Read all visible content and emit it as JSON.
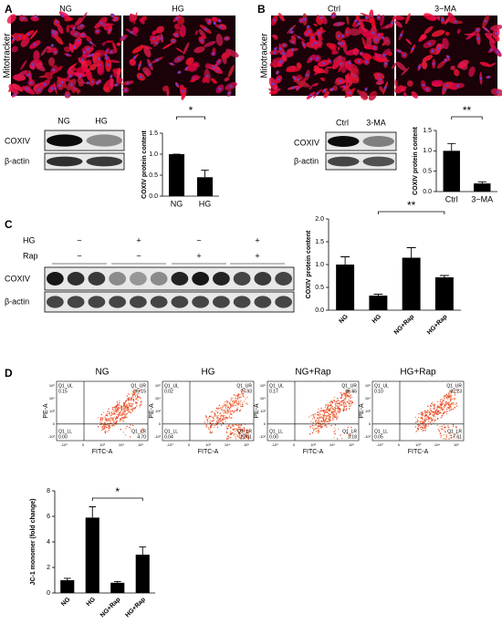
{
  "figure": {
    "panel_labels": [
      "A",
      "B",
      "C",
      "D"
    ],
    "a": {
      "image_labels": [
        "NG",
        "HG"
      ],
      "stain": "Mitotracker",
      "blot_lanes": [
        "NG",
        "HG"
      ],
      "blot_rows": [
        "COXIV",
        "β-actin"
      ]
    },
    "b": {
      "image_labels": [
        "Ctrl",
        "3−MA"
      ],
      "stain": "Mitotracker",
      "blot_lanes": [
        "Ctrl",
        "3-MA"
      ],
      "blot_rows": [
        "COXIV",
        "β-actin"
      ]
    },
    "c": {
      "conditions": [
        {
          "name": "HG",
          "signs": [
            "−",
            "+",
            "−",
            "+"
          ]
        },
        {
          "name": "Rap",
          "signs": [
            "−",
            "−",
            "+",
            "+"
          ]
        }
      ],
      "blot_rows": [
        "COXIV",
        "β-actin"
      ]
    },
    "d": {
      "quadrants": [
        "Q1_UL",
        "Q1_UR",
        "Q1_LL",
        "Q1_LR"
      ],
      "x_axis": "FITC-A",
      "y_axis": "PE-A",
      "axis_ticks": [
        "-10³",
        "0",
        "10³",
        "10⁴",
        "10⁵"
      ],
      "plots": [
        {
          "title": "NG",
          "UL": "0.15",
          "UR": "95.15",
          "LL": "0.00",
          "LR": "4.70"
        },
        {
          "title": "HG",
          "UL": "0.02",
          "UR": "77.93",
          "LL": "0.04",
          "LR": "22.01"
        },
        {
          "title": "NG+Rap",
          "UL": "0.17",
          "UR": "96.65",
          "LL": "0.00",
          "LR": "3.18"
        },
        {
          "title": "HG+Rap",
          "UL": "0.10",
          "UR": "92.23",
          "LL": "0.05",
          "LR": "7.61"
        }
      ]
    }
  },
  "chart_data": [
    {
      "type": "bar",
      "y_label": "COXIV protein content",
      "categories": [
        "NG",
        "HG"
      ],
      "values": [
        1.0,
        0.45
      ],
      "errors": [
        0,
        0.17
      ],
      "color": "#000000",
      "ylim": [
        0,
        1.5
      ],
      "yticks": [
        {
          "value": 0,
          "label": "0.0"
        },
        {
          "value": 0.5,
          "label": "0.5"
        },
        {
          "value": 1,
          "label": "1.0"
        },
        {
          "value": 1.5,
          "label": "1.5"
        }
      ],
      "annotation": "*"
    },
    {
      "type": "bar",
      "y_label": "COXIV protein content",
      "categories": [
        "Ctrl",
        "3−MA"
      ],
      "values": [
        1.0,
        0.2
      ],
      "errors": [
        0.18,
        0.04
      ],
      "color": "#000000",
      "ylim": [
        0,
        1.5
      ],
      "yticks": [
        {
          "value": 0,
          "label": "0.0"
        },
        {
          "value": 0.5,
          "label": "0.5"
        },
        {
          "value": 1,
          "label": "1.0"
        },
        {
          "value": 1.5,
          "label": "1.5"
        }
      ],
      "annotation": "**"
    },
    {
      "type": "bar",
      "y_label": "COXIV protein content",
      "categories": [
        "NG",
        "HG",
        "NG+Rap",
        "HG+Rap"
      ],
      "values": [
        1.0,
        0.32,
        1.15,
        0.72
      ],
      "errors": [
        0.17,
        0.03,
        0.22,
        0.04
      ],
      "color": "#000000",
      "ylim": [
        0,
        2
      ],
      "yticks": [
        {
          "value": 0,
          "label": "0.0"
        },
        {
          "value": 0.5,
          "label": "0.5"
        },
        {
          "value": 1,
          "label": "1.0"
        },
        {
          "value": 1.5,
          "label": "1.5"
        },
        {
          "value": 2,
          "label": "2.0"
        }
      ],
      "annotation": "**"
    },
    {
      "type": "bar",
      "y_label": "JC-1 monomer (fold change)",
      "categories": [
        "NG",
        "HG",
        "NG+Rap",
        "HG+Rap"
      ],
      "values": [
        1.0,
        5.9,
        0.8,
        3.0
      ],
      "errors": [
        0.15,
        0.85,
        0.1,
        0.6
      ],
      "color": "#000000",
      "ylim": [
        0,
        8
      ],
      "yticks": [
        0,
        2,
        4,
        6,
        8
      ],
      "annotation": "*"
    }
  ]
}
